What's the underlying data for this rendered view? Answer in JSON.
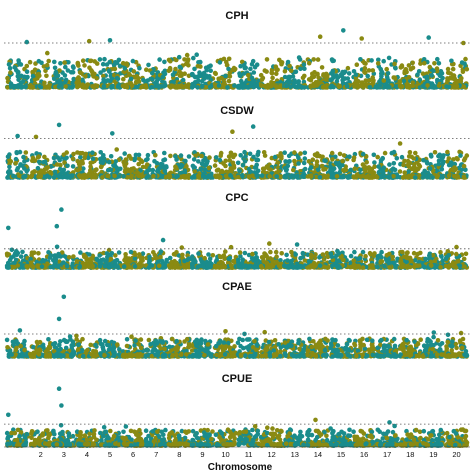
{
  "chart_data": {
    "type": "scatter",
    "chart_kind": "manhattan",
    "xlabel": "Chromosome",
    "x_ticks": [
      "2",
      "3",
      "4",
      "5",
      "6",
      "7",
      "8",
      "9",
      "10",
      "11",
      "12",
      "13",
      "14",
      "15",
      "16",
      "17",
      "18",
      "19",
      "20"
    ],
    "chromosomes": [
      1,
      2,
      3,
      4,
      5,
      6,
      7,
      8,
      9,
      10,
      11,
      12,
      13,
      14,
      15,
      16,
      17,
      18,
      19,
      20
    ],
    "colors": {
      "odd_chromosome": "#1a8c8c",
      "even_chromosome": "#8a8a12",
      "threshold": "#555555"
    },
    "grid": false,
    "legend": "none",
    "panels": [
      {
        "title": "CPH",
        "ylim": [
          0,
          7
        ],
        "threshold": 5.0,
        "background_max": 3.2,
        "points": [
          {
            "chr": 15,
            "pos": 0.6,
            "y": 6.4
          },
          {
            "chr": 14,
            "pos": 0.6,
            "y": 5.7
          },
          {
            "chr": 19,
            "pos": 0.3,
            "y": 5.6
          },
          {
            "chr": 16,
            "pos": 0.4,
            "y": 5.5
          },
          {
            "chr": 5,
            "pos": 0.5,
            "y": 5.3
          },
          {
            "chr": 4,
            "pos": 0.6,
            "y": 5.2
          },
          {
            "chr": 1,
            "pos": 0.9,
            "y": 5.1
          },
          {
            "chr": 20,
            "pos": 0.8,
            "y": 5.0
          }
        ]
      },
      {
        "title": "CSDW",
        "ylim": [
          0,
          7
        ],
        "threshold": 4.6,
        "background_max": 3.0,
        "points": [
          {
            "chr": 3,
            "pos": 0.3,
            "y": 6.2
          },
          {
            "chr": 11,
            "pos": 0.7,
            "y": 6.0
          },
          {
            "chr": 10,
            "pos": 0.8,
            "y": 5.4
          },
          {
            "chr": 5,
            "pos": 0.6,
            "y": 5.2
          },
          {
            "chr": 1,
            "pos": 0.5,
            "y": 4.9
          },
          {
            "chr": 2,
            "pos": 0.3,
            "y": 4.8
          }
        ]
      },
      {
        "title": "CPC",
        "ylim": [
          0,
          7
        ],
        "threshold": 2.2,
        "background_max": 1.8,
        "points": [
          {
            "chr": 3,
            "pos": 0.4,
            "y": 6.7
          },
          {
            "chr": 3,
            "pos": 0.2,
            "y": 4.8
          },
          {
            "chr": 1,
            "pos": 0.1,
            "y": 4.6
          },
          {
            "chr": 7,
            "pos": 0.8,
            "y": 3.2
          },
          {
            "chr": 12,
            "pos": 0.4,
            "y": 2.8
          },
          {
            "chr": 13,
            "pos": 0.6,
            "y": 2.7
          },
          {
            "chr": 20,
            "pos": 0.5,
            "y": 2.4
          }
        ]
      },
      {
        "title": "CPAE",
        "ylim": [
          0,
          7
        ],
        "threshold": 2.6,
        "background_max": 2.0,
        "points": [
          {
            "chr": 3,
            "pos": 0.5,
            "y": 6.8
          },
          {
            "chr": 3,
            "pos": 0.3,
            "y": 4.3
          },
          {
            "chr": 1,
            "pos": 0.6,
            "y": 3.0
          },
          {
            "chr": 10,
            "pos": 0.5,
            "y": 2.9
          },
          {
            "chr": 12,
            "pos": 0.2,
            "y": 2.8
          },
          {
            "chr": 20,
            "pos": 0.7,
            "y": 2.7
          }
        ]
      },
      {
        "title": "CPUE",
        "ylim": [
          0,
          7
        ],
        "threshold": 2.6,
        "background_max": 1.9,
        "points": [
          {
            "chr": 3,
            "pos": 0.3,
            "y": 6.8
          },
          {
            "chr": 3,
            "pos": 0.4,
            "y": 4.8
          },
          {
            "chr": 1,
            "pos": 0.1,
            "y": 3.7
          },
          {
            "chr": 14,
            "pos": 0.4,
            "y": 3.1
          },
          {
            "chr": 17,
            "pos": 0.6,
            "y": 2.8
          }
        ]
      }
    ]
  }
}
